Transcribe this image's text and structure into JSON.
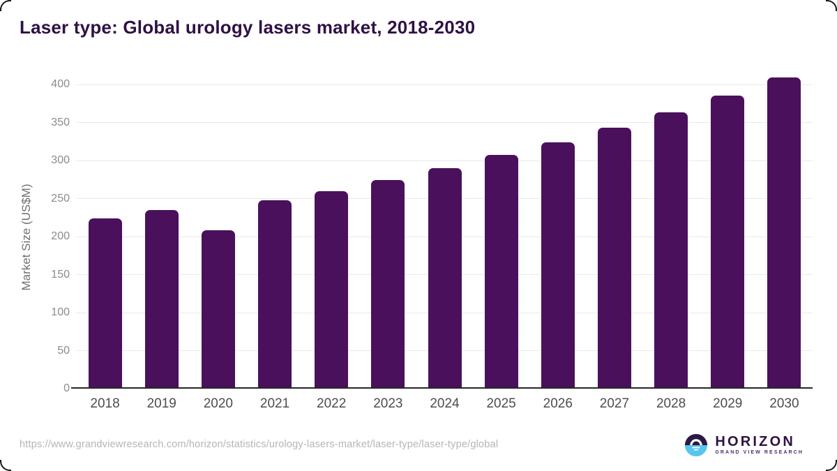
{
  "title": "Laser type: Global urology lasers market, 2018-2030",
  "chart_data": {
    "type": "bar",
    "title": "Laser type: Global urology lasers market, 2018-2030",
    "categories": [
      "2018",
      "2019",
      "2020",
      "2021",
      "2022",
      "2023",
      "2024",
      "2025",
      "2026",
      "2027",
      "2028",
      "2029",
      "2030"
    ],
    "values": [
      224,
      235,
      208,
      248,
      260,
      274,
      290,
      307,
      324,
      343,
      363,
      385,
      409
    ],
    "xlabel": "",
    "ylabel": "Market Size (US$M)",
    "ylim": [
      0,
      400
    ],
    "yticks": [
      0,
      50,
      100,
      150,
      200,
      250,
      300,
      350,
      400
    ],
    "grid": true,
    "legend": "none",
    "bar_color": "#4a105c"
  },
  "footer": {
    "source_url": "https://www.grandviewresearch.com/horizon/statistics/urology-lasers-market/laser-type/laser-type/global",
    "logo": {
      "brand": "HORIZON",
      "sub_brand": "GRAND VIEW RESEARCH"
    }
  },
  "colors": {
    "bar": "#4a105c",
    "title": "#2e1145",
    "axis_line": "#262626",
    "gridline": "#e9e9e9",
    "y_tick_label": "#8b8b8b",
    "x_tick_label": "#4d4d4d",
    "url_text": "#b5b5b5",
    "logo_purple": "#2c1a43",
    "logo_blue": "#58c4f0"
  }
}
